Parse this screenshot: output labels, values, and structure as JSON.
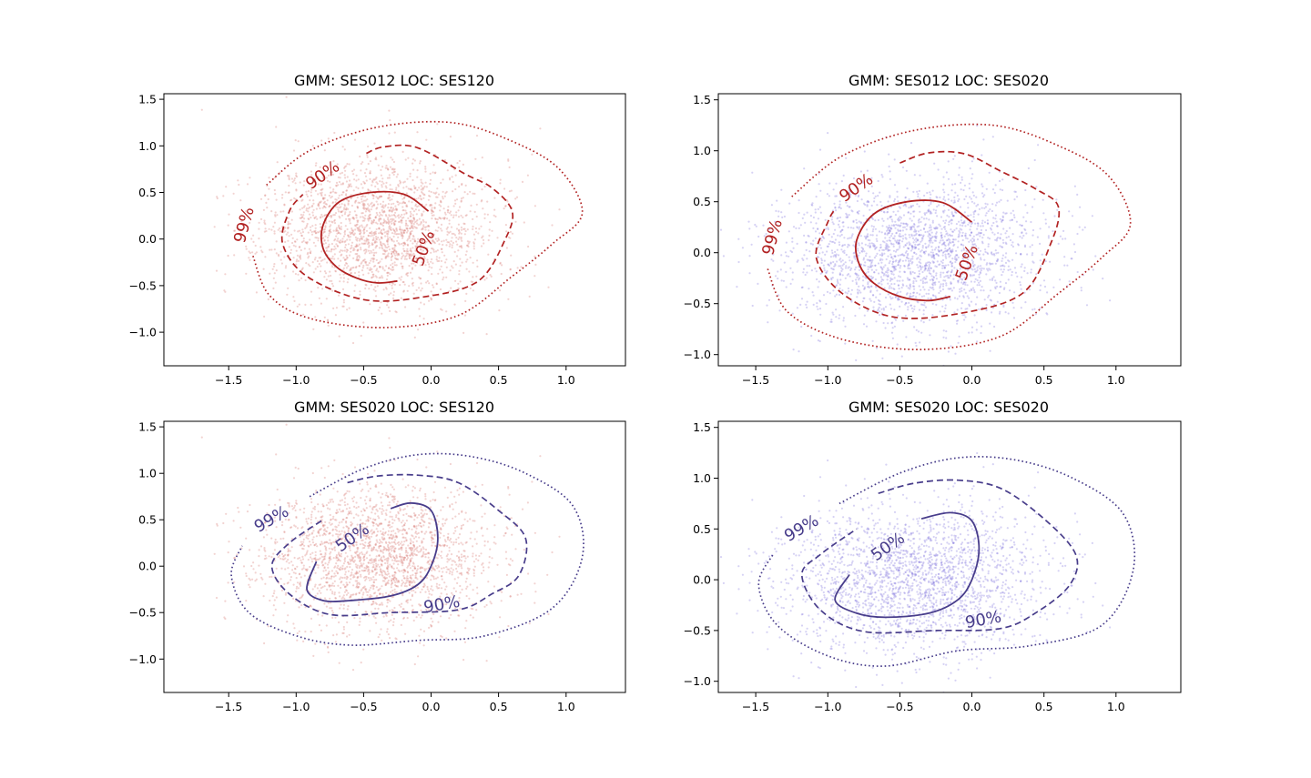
{
  "figure": {
    "background": "#ffffff",
    "colors": {
      "red_scatter": "#d9807a",
      "blue_scatter": "#8a7fe0",
      "red_contour": "#b22222",
      "blue_contour": "#483d8b"
    }
  },
  "chart_data": [
    {
      "type": "scatter",
      "title": "GMM: SES012 LOC: SES120",
      "xlabel": "",
      "ylabel": "",
      "xlim": [
        -1.98,
        1.44
      ],
      "ylim": [
        -1.36,
        1.56
      ],
      "xticks": [
        -1.5,
        -1.0,
        -0.5,
        0.0,
        0.5,
        1.0
      ],
      "xtick_labels": [
        "−1.5",
        "−1.0",
        "−0.5",
        "0.0",
        "0.5",
        "1.0"
      ],
      "yticks": [
        -1.0,
        -0.5,
        0.0,
        0.5,
        1.0,
        1.5
      ],
      "ytick_labels": [
        "−1.0",
        "−0.5",
        "0.0",
        "0.5",
        "1.0",
        "1.5"
      ],
      "grid": false,
      "scatter": {
        "color": "#d9807a",
        "center": [
          -0.4,
          0.1
        ],
        "spread": [
          0.42,
          0.38
        ],
        "count": 2200,
        "seed": 11
      },
      "contour_color": "#b22222",
      "contours": [
        {
          "level": "50%",
          "style": "solid",
          "points": [
            [
              -0.02,
              0.3
            ],
            [
              -0.2,
              0.48
            ],
            [
              -0.45,
              0.5
            ],
            [
              -0.68,
              0.4
            ],
            [
              -0.8,
              0.15
            ],
            [
              -0.8,
              -0.1
            ],
            [
              -0.7,
              -0.3
            ],
            [
              -0.55,
              -0.42
            ],
            [
              -0.4,
              -0.47
            ],
            [
              -0.25,
              -0.45
            ]
          ],
          "label_pos": [
            -0.05,
            -0.1
          ],
          "label_angle": -70
        },
        {
          "level": "90%",
          "style": "dashed",
          "points": [
            [
              -0.48,
              0.92
            ],
            [
              -0.35,
              0.99
            ],
            [
              -0.1,
              0.98
            ],
            [
              0.25,
              0.7
            ],
            [
              0.45,
              0.55
            ],
            [
              0.6,
              0.3
            ],
            [
              0.55,
              0.0
            ],
            [
              0.35,
              -0.45
            ],
            [
              -0.05,
              -0.62
            ],
            [
              -0.5,
              -0.65
            ],
            [
              -0.92,
              -0.4
            ],
            [
              -1.1,
              -0.05
            ],
            [
              -1.05,
              0.3
            ],
            [
              -0.95,
              0.48
            ]
          ],
          "label_pos": [
            -0.8,
            0.68
          ],
          "label_angle": -35
        },
        {
          "level": "99%",
          "style": "dotted",
          "points": [
            [
              -1.22,
              0.58
            ],
            [
              -0.9,
              0.95
            ],
            [
              -0.4,
              1.2
            ],
            [
              0.15,
              1.25
            ],
            [
              0.6,
              1.05
            ],
            [
              0.95,
              0.75
            ],
            [
              1.12,
              0.28
            ],
            [
              0.9,
              -0.05
            ],
            [
              0.6,
              -0.4
            ],
            [
              0.2,
              -0.82
            ],
            [
              -0.35,
              -0.95
            ],
            [
              -0.9,
              -0.85
            ],
            [
              -1.2,
              -0.6
            ],
            [
              -1.32,
              -0.18
            ]
          ],
          "label_pos": [
            -1.38,
            0.15
          ],
          "label_angle": -75
        }
      ]
    },
    {
      "type": "scatter",
      "title": "GMM: SES012 LOC: SES020",
      "xlabel": "",
      "ylabel": "",
      "xlim": [
        -1.76,
        1.45
      ],
      "ylim": [
        -1.11,
        1.56
      ],
      "xticks": [
        -1.5,
        -1.0,
        -0.5,
        0.0,
        0.5,
        1.0
      ],
      "xtick_labels": [
        "−1.5",
        "−1.0",
        "−0.5",
        "0.0",
        "0.5",
        "1.0"
      ],
      "yticks": [
        -1.0,
        -0.5,
        0.0,
        0.5,
        1.0,
        1.5
      ],
      "ytick_labels": [
        "−1.0",
        "−0.5",
        "0.0",
        "0.5",
        "1.0",
        "1.5"
      ],
      "grid": false,
      "scatter": {
        "color": "#8a7fe0",
        "center": [
          -0.4,
          0.0
        ],
        "spread": [
          0.45,
          0.35
        ],
        "count": 2200,
        "seed": 23
      },
      "contour_color": "#b22222",
      "contours": [
        {
          "level": "50%",
          "style": "solid",
          "points": [
            [
              0.0,
              0.3
            ],
            [
              -0.2,
              0.49
            ],
            [
              -0.45,
              0.5
            ],
            [
              -0.68,
              0.38
            ],
            [
              -0.8,
              0.12
            ],
            [
              -0.78,
              -0.12
            ],
            [
              -0.68,
              -0.3
            ],
            [
              -0.5,
              -0.43
            ],
            [
              -0.3,
              -0.47
            ],
            [
              -0.15,
              -0.43
            ]
          ],
          "label_pos": [
            -0.03,
            -0.1
          ],
          "label_angle": -70
        },
        {
          "level": "90%",
          "style": "dashed",
          "points": [
            [
              -0.5,
              0.88
            ],
            [
              -0.3,
              0.98
            ],
            [
              -0.05,
              0.97
            ],
            [
              0.2,
              0.8
            ],
            [
              0.45,
              0.62
            ],
            [
              0.6,
              0.45
            ],
            [
              0.55,
              0.1
            ],
            [
              0.35,
              -0.4
            ],
            [
              -0.1,
              -0.6
            ],
            [
              -0.55,
              -0.63
            ],
            [
              -0.9,
              -0.4
            ],
            [
              -1.08,
              -0.05
            ],
            [
              -1.0,
              0.3
            ],
            [
              -0.95,
              0.43
            ]
          ],
          "label_pos": [
            -0.8,
            0.63
          ],
          "label_angle": -35
        },
        {
          "level": "99%",
          "style": "dotted",
          "points": [
            [
              -1.25,
              0.55
            ],
            [
              -0.9,
              0.95
            ],
            [
              -0.4,
              1.2
            ],
            [
              0.15,
              1.25
            ],
            [
              0.6,
              1.05
            ],
            [
              0.95,
              0.75
            ],
            [
              1.1,
              0.28
            ],
            [
              0.9,
              -0.05
            ],
            [
              0.6,
              -0.4
            ],
            [
              0.2,
              -0.82
            ],
            [
              -0.35,
              -0.95
            ],
            [
              -0.9,
              -0.85
            ],
            [
              -1.28,
              -0.58
            ],
            [
              -1.42,
              -0.15
            ]
          ],
          "label_pos": [
            -1.38,
            0.15
          ],
          "label_angle": -75
        }
      ]
    },
    {
      "type": "scatter",
      "title": "GMM: SES020 LOC: SES120",
      "xlabel": "",
      "ylabel": "",
      "xlim": [
        -1.98,
        1.44
      ],
      "ylim": [
        -1.36,
        1.56
      ],
      "xticks": [
        -1.5,
        -1.0,
        -0.5,
        0.0,
        0.5,
        1.0
      ],
      "xtick_labels": [
        "−1.5",
        "−1.0",
        "−0.5",
        "0.0",
        "0.5",
        "1.0"
      ],
      "yticks": [
        -1.0,
        -0.5,
        0.0,
        0.5,
        1.0,
        1.5
      ],
      "ytick_labels": [
        "−1.0",
        "−0.5",
        "0.0",
        "0.5",
        "1.0",
        "1.5"
      ],
      "grid": false,
      "scatter": {
        "color": "#d9807a",
        "center": [
          -0.4,
          0.1
        ],
        "spread": [
          0.42,
          0.38
        ],
        "count": 2200,
        "seed": 11
      },
      "contour_color": "#483d8b",
      "contours": [
        {
          "level": "50%",
          "style": "solid",
          "points": [
            [
              -0.3,
              0.62
            ],
            [
              -0.15,
              0.68
            ],
            [
              0.0,
              0.6
            ],
            [
              0.05,
              0.3
            ],
            [
              0.0,
              0.0
            ],
            [
              -0.1,
              -0.2
            ],
            [
              -0.3,
              -0.32
            ],
            [
              -0.6,
              -0.37
            ],
            [
              -0.8,
              -0.37
            ],
            [
              -0.92,
              -0.25
            ],
            [
              -0.85,
              0.05
            ]
          ],
          "label_pos": [
            -0.58,
            0.3
          ],
          "label_angle": -35
        },
        {
          "level": "90%",
          "style": "dashed",
          "points": [
            [
              -0.62,
              0.9
            ],
            [
              -0.4,
              0.97
            ],
            [
              -0.1,
              0.98
            ],
            [
              0.2,
              0.9
            ],
            [
              0.5,
              0.6
            ],
            [
              0.7,
              0.3
            ],
            [
              0.65,
              -0.1
            ],
            [
              0.45,
              -0.3
            ],
            [
              0.2,
              -0.47
            ],
            [
              -0.3,
              -0.5
            ],
            [
              -0.75,
              -0.52
            ],
            [
              -1.05,
              -0.3
            ],
            [
              -1.18,
              0.0
            ],
            [
              -1.05,
              0.25
            ],
            [
              -0.8,
              0.5
            ]
          ],
          "label_pos": [
            0.08,
            -0.42
          ],
          "label_angle": -10
        },
        {
          "level": "99%",
          "style": "dotted",
          "points": [
            [
              -0.9,
              0.75
            ],
            [
              -0.5,
              1.05
            ],
            [
              -0.1,
              1.2
            ],
            [
              0.3,
              1.18
            ],
            [
              0.7,
              1.0
            ],
            [
              1.05,
              0.65
            ],
            [
              1.12,
              0.1
            ],
            [
              0.9,
              -0.45
            ],
            [
              0.4,
              -0.75
            ],
            [
              -0.1,
              -0.8
            ],
            [
              -0.6,
              -0.85
            ],
            [
              -1.0,
              -0.75
            ],
            [
              -1.35,
              -0.5
            ],
            [
              -1.48,
              -0.1
            ],
            [
              -1.4,
              0.22
            ]
          ],
          "label_pos": [
            -1.18,
            0.5
          ],
          "label_angle": -30
        }
      ]
    },
    {
      "type": "scatter",
      "title": "GMM: SES020 LOC: SES020",
      "xlabel": "",
      "ylabel": "",
      "xlim": [
        -1.76,
        1.45
      ],
      "ylim": [
        -1.11,
        1.56
      ],
      "xticks": [
        -1.5,
        -1.0,
        -0.5,
        0.0,
        0.5,
        1.0
      ],
      "xtick_labels": [
        "−1.5",
        "−1.0",
        "−0.5",
        "0.0",
        "0.5",
        "1.0"
      ],
      "yticks": [
        -1.0,
        -0.5,
        0.0,
        0.5,
        1.0,
        1.5
      ],
      "ytick_labels": [
        "−1.0",
        "−0.5",
        "0.0",
        "0.5",
        "1.0",
        "1.5"
      ],
      "grid": false,
      "scatter": {
        "color": "#8a7fe0",
        "center": [
          -0.4,
          0.0
        ],
        "spread": [
          0.45,
          0.35
        ],
        "count": 2200,
        "seed": 23
      },
      "contour_color": "#483d8b",
      "contours": [
        {
          "level": "50%",
          "style": "solid",
          "points": [
            [
              -0.35,
              0.6
            ],
            [
              -0.15,
              0.66
            ],
            [
              0.0,
              0.58
            ],
            [
              0.05,
              0.3
            ],
            [
              0.0,
              0.0
            ],
            [
              -0.1,
              -0.2
            ],
            [
              -0.3,
              -0.33
            ],
            [
              -0.6,
              -0.37
            ],
            [
              -0.8,
              -0.33
            ],
            [
              -0.95,
              -0.2
            ],
            [
              -0.85,
              0.05
            ]
          ],
          "label_pos": [
            -0.58,
            0.32
          ],
          "label_angle": -35
        },
        {
          "level": "90%",
          "style": "dashed",
          "points": [
            [
              -0.65,
              0.85
            ],
            [
              -0.4,
              0.95
            ],
            [
              -0.1,
              0.98
            ],
            [
              0.2,
              0.9
            ],
            [
              0.5,
              0.6
            ],
            [
              0.72,
              0.25
            ],
            [
              0.68,
              -0.05
            ],
            [
              0.45,
              -0.32
            ],
            [
              0.2,
              -0.48
            ],
            [
              -0.25,
              -0.5
            ],
            [
              -0.75,
              -0.51
            ],
            [
              -1.05,
              -0.3
            ],
            [
              -1.18,
              0.05
            ],
            [
              -1.05,
              0.25
            ],
            [
              -0.8,
              0.5
            ]
          ],
          "label_pos": [
            0.08,
            -0.4
          ],
          "label_angle": -10
        },
        {
          "level": "99%",
          "style": "dotted",
          "points": [
            [
              -0.92,
              0.75
            ],
            [
              -0.5,
              1.05
            ],
            [
              -0.1,
              1.2
            ],
            [
              0.3,
              1.18
            ],
            [
              0.7,
              1.0
            ],
            [
              1.05,
              0.65
            ],
            [
              1.12,
              0.1
            ],
            [
              0.9,
              -0.45
            ],
            [
              0.4,
              -0.65
            ],
            [
              -0.1,
              -0.7
            ],
            [
              -0.6,
              -0.85
            ],
            [
              -1.0,
              -0.75
            ],
            [
              -1.35,
              -0.45
            ],
            [
              -1.48,
              -0.05
            ],
            [
              -1.38,
              0.25
            ]
          ],
          "label_pos": [
            -1.18,
            0.5
          ],
          "label_angle": -30
        }
      ]
    }
  ]
}
